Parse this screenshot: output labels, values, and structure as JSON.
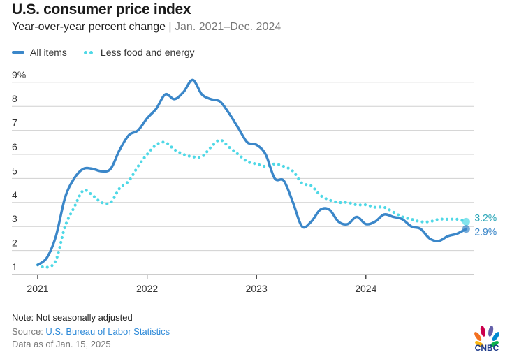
{
  "header": {
    "title": "U.S. consumer price index",
    "subtitle_main": "Year-over-year percent change",
    "subtitle_sep": " | ",
    "subtitle_range": "Jan. 2021–Dec. 2024"
  },
  "legend": {
    "all_items": "All items",
    "core": "Less food and energy"
  },
  "colors": {
    "all_items": "#3b87c9",
    "core": "#4fd8e6",
    "end_label_all": "#3b87c9",
    "end_label_core": "#2aa6b8",
    "grid": "#d0d0d0"
  },
  "footer": {
    "note": "Note: Not seasonally adjusted",
    "source_prefix": "Source: ",
    "source_link": "U.S. Bureau of Labor Statistics",
    "as_of": "Data as of Jan. 15, 2025"
  },
  "logo": {
    "text": "CNBC",
    "icon": "nbc-peacock-icon"
  },
  "chart_data": {
    "type": "line",
    "title": "U.S. consumer price index",
    "subtitle": "Year-over-year percent change | Jan. 2021–Dec. 2024",
    "xlabel": "",
    "ylabel": "",
    "x_start": "2021-01",
    "x_end": "2024-12",
    "xticks": [
      "2021",
      "2022",
      "2023",
      "2024"
    ],
    "yticks": [
      "1",
      "2",
      "3",
      "4",
      "5",
      "6",
      "7",
      "8",
      "9%"
    ],
    "ylim": [
      1,
      9
    ],
    "grid": true,
    "legend_position": "top-left",
    "series": [
      {
        "name": "All items",
        "style": "solid",
        "end_label": "2.9%",
        "values": [
          1.4,
          1.7,
          2.6,
          4.2,
          5.0,
          5.4,
          5.4,
          5.3,
          5.4,
          6.2,
          6.8,
          7.0,
          7.5,
          7.9,
          8.5,
          8.3,
          8.6,
          9.1,
          8.5,
          8.3,
          8.2,
          7.7,
          7.1,
          6.5,
          6.4,
          6.0,
          5.0,
          4.9,
          4.0,
          3.0,
          3.2,
          3.7,
          3.7,
          3.2,
          3.1,
          3.4,
          3.1,
          3.2,
          3.5,
          3.4,
          3.3,
          3.0,
          2.9,
          2.5,
          2.4,
          2.6,
          2.7,
          2.9
        ]
      },
      {
        "name": "Less food and energy",
        "style": "dotted",
        "end_label": "3.2%",
        "values": [
          1.4,
          1.3,
          1.6,
          3.0,
          3.8,
          4.5,
          4.3,
          4.0,
          4.0,
          4.6,
          4.9,
          5.5,
          6.0,
          6.4,
          6.5,
          6.2,
          6.0,
          5.9,
          5.9,
          6.3,
          6.6,
          6.3,
          6.0,
          5.7,
          5.6,
          5.5,
          5.6,
          5.5,
          5.3,
          4.8,
          4.7,
          4.3,
          4.1,
          4.0,
          4.0,
          3.9,
          3.9,
          3.8,
          3.8,
          3.6,
          3.4,
          3.3,
          3.2,
          3.2,
          3.3,
          3.3,
          3.3,
          3.2
        ]
      }
    ]
  }
}
